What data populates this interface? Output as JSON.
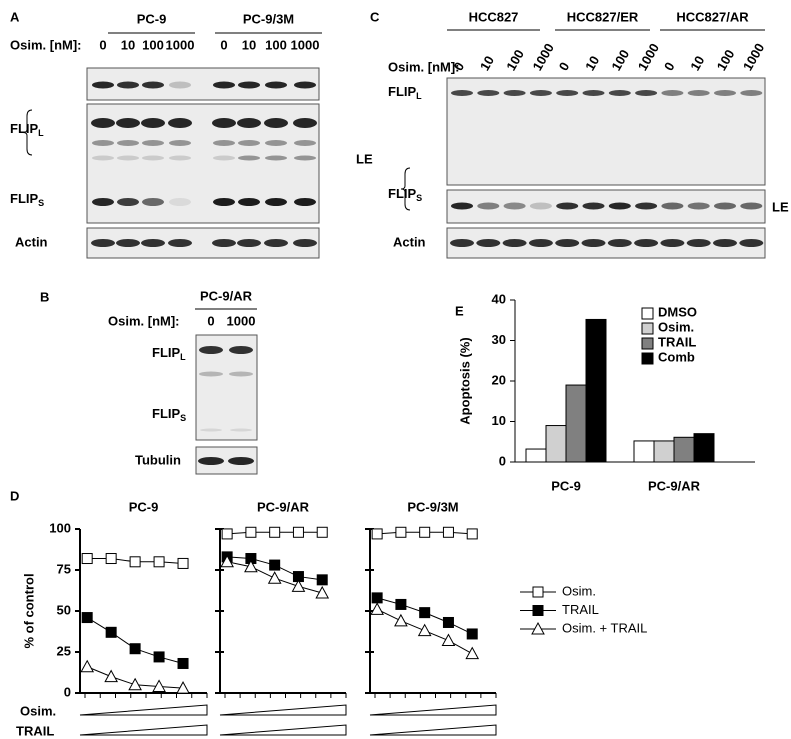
{
  "panel_labels": [
    "A",
    "B",
    "C",
    "D",
    "E"
  ],
  "blot_a": {
    "groups": [
      "PC-9",
      "PC-9/3M"
    ],
    "dose_label": "Osim. [nM]:",
    "doses": [
      0,
      10,
      100,
      1000,
      0,
      10,
      100,
      1000
    ],
    "flip_l": {
      "text": "FLIP",
      "sub": "L"
    },
    "flip_s": {
      "text": "FLIP",
      "sub": "S"
    },
    "exposure": "LE",
    "loading": "Actin"
  },
  "blot_b": {
    "groups": [
      "PC-9/AR"
    ],
    "dose_label": "Osim. [nM]:",
    "doses": [
      0,
      1000
    ],
    "flip_l": {
      "text": "FLIP",
      "sub": "L"
    },
    "flip_s": {
      "text": "FLIP",
      "sub": "S"
    },
    "loading": "Tubulin"
  },
  "blot_c": {
    "groups": [
      "HCC827",
      "HCC827/ER",
      "HCC827/AR"
    ],
    "dose_label": "Osim. [nM]:",
    "doses": [
      0,
      10,
      100,
      1000,
      0,
      10,
      100,
      1000,
      0,
      10,
      100,
      1000
    ],
    "flip_l": {
      "text": "FLIP",
      "sub": "L"
    },
    "flip_s": {
      "text": "FLIP",
      "sub": "S"
    },
    "exposure": "LE",
    "loading": "Actin"
  },
  "treatment_labels": [
    "Osim.",
    "TRAIL"
  ],
  "chart_data": [
    {
      "type": "bar",
      "ylabel": "Apoptosis (%)",
      "categories": [
        "PC-9",
        "PC-9/AR"
      ],
      "series": [
        {
          "name": "DMSO",
          "color": "#ffffff",
          "values": [
            3.2,
            5.2
          ]
        },
        {
          "name": "Osim.",
          "color": "#d0d0d0",
          "values": [
            9,
            5.2
          ]
        },
        {
          "name": "TRAIL",
          "color": "#808080",
          "values": [
            19,
            6.1
          ]
        },
        {
          "name": "Comb",
          "color": "#000000",
          "values": [
            35.2,
            7
          ]
        }
      ],
      "ylim": [
        0,
        40
      ],
      "yticks": [
        0,
        10,
        20,
        30,
        40
      ],
      "legend": "upper right"
    },
    {
      "type": "line",
      "title": "PC-9",
      "ylabel": "% of control",
      "x": [
        1,
        2,
        3,
        4,
        5
      ],
      "xlim": [
        0.7,
        6
      ],
      "ylim": [
        0,
        100
      ],
      "yticks": [
        0,
        25,
        50,
        75,
        100
      ],
      "series": [
        {
          "color": "#ffffff",
          "marker": "square",
          "values": [
            82,
            82,
            80,
            80,
            79
          ]
        },
        {
          "color": "#000000",
          "marker": "square",
          "values": [
            46,
            37,
            27,
            22,
            18
          ]
        },
        {
          "color": "#ffffff",
          "marker": "triangle",
          "values": [
            16,
            10,
            5,
            4,
            3
          ]
        }
      ]
    },
    {
      "type": "line",
      "title": "PC-9/AR",
      "x": [
        1,
        2,
        3,
        4,
        5
      ],
      "xlim": [
        0.7,
        6
      ],
      "ylim": [
        0,
        100
      ],
      "yticks": [
        0,
        25,
        50,
        75,
        100
      ],
      "series": [
        {
          "color": "#ffffff",
          "marker": "square",
          "values": [
            97,
            98,
            98,
            98,
            98
          ]
        },
        {
          "color": "#000000",
          "marker": "square",
          "values": [
            83,
            82,
            78,
            71,
            69
          ]
        },
        {
          "color": "#ffffff",
          "marker": "triangle",
          "values": [
            80,
            77,
            70,
            65,
            61
          ]
        }
      ]
    },
    {
      "type": "line",
      "title": "PC-9/3M",
      "x": [
        1,
        2,
        3,
        4,
        5
      ],
      "xlim": [
        0.7,
        6
      ],
      "ylim": [
        0,
        100
      ],
      "yticks": [
        0,
        25,
        50,
        75,
        100
      ],
      "legend": "right",
      "series": [
        {
          "name": "Osim.",
          "color": "#ffffff",
          "marker": "square",
          "values": [
            97,
            98,
            98,
            98,
            97
          ]
        },
        {
          "name": "TRAIL",
          "color": "#000000",
          "marker": "square",
          "values": [
            58,
            54,
            49,
            43,
            36
          ]
        },
        {
          "name": "Osim. + TRAIL",
          "color": "#ffffff",
          "marker": "triangle",
          "values": [
            51,
            44,
            38,
            32,
            24
          ]
        }
      ]
    }
  ]
}
